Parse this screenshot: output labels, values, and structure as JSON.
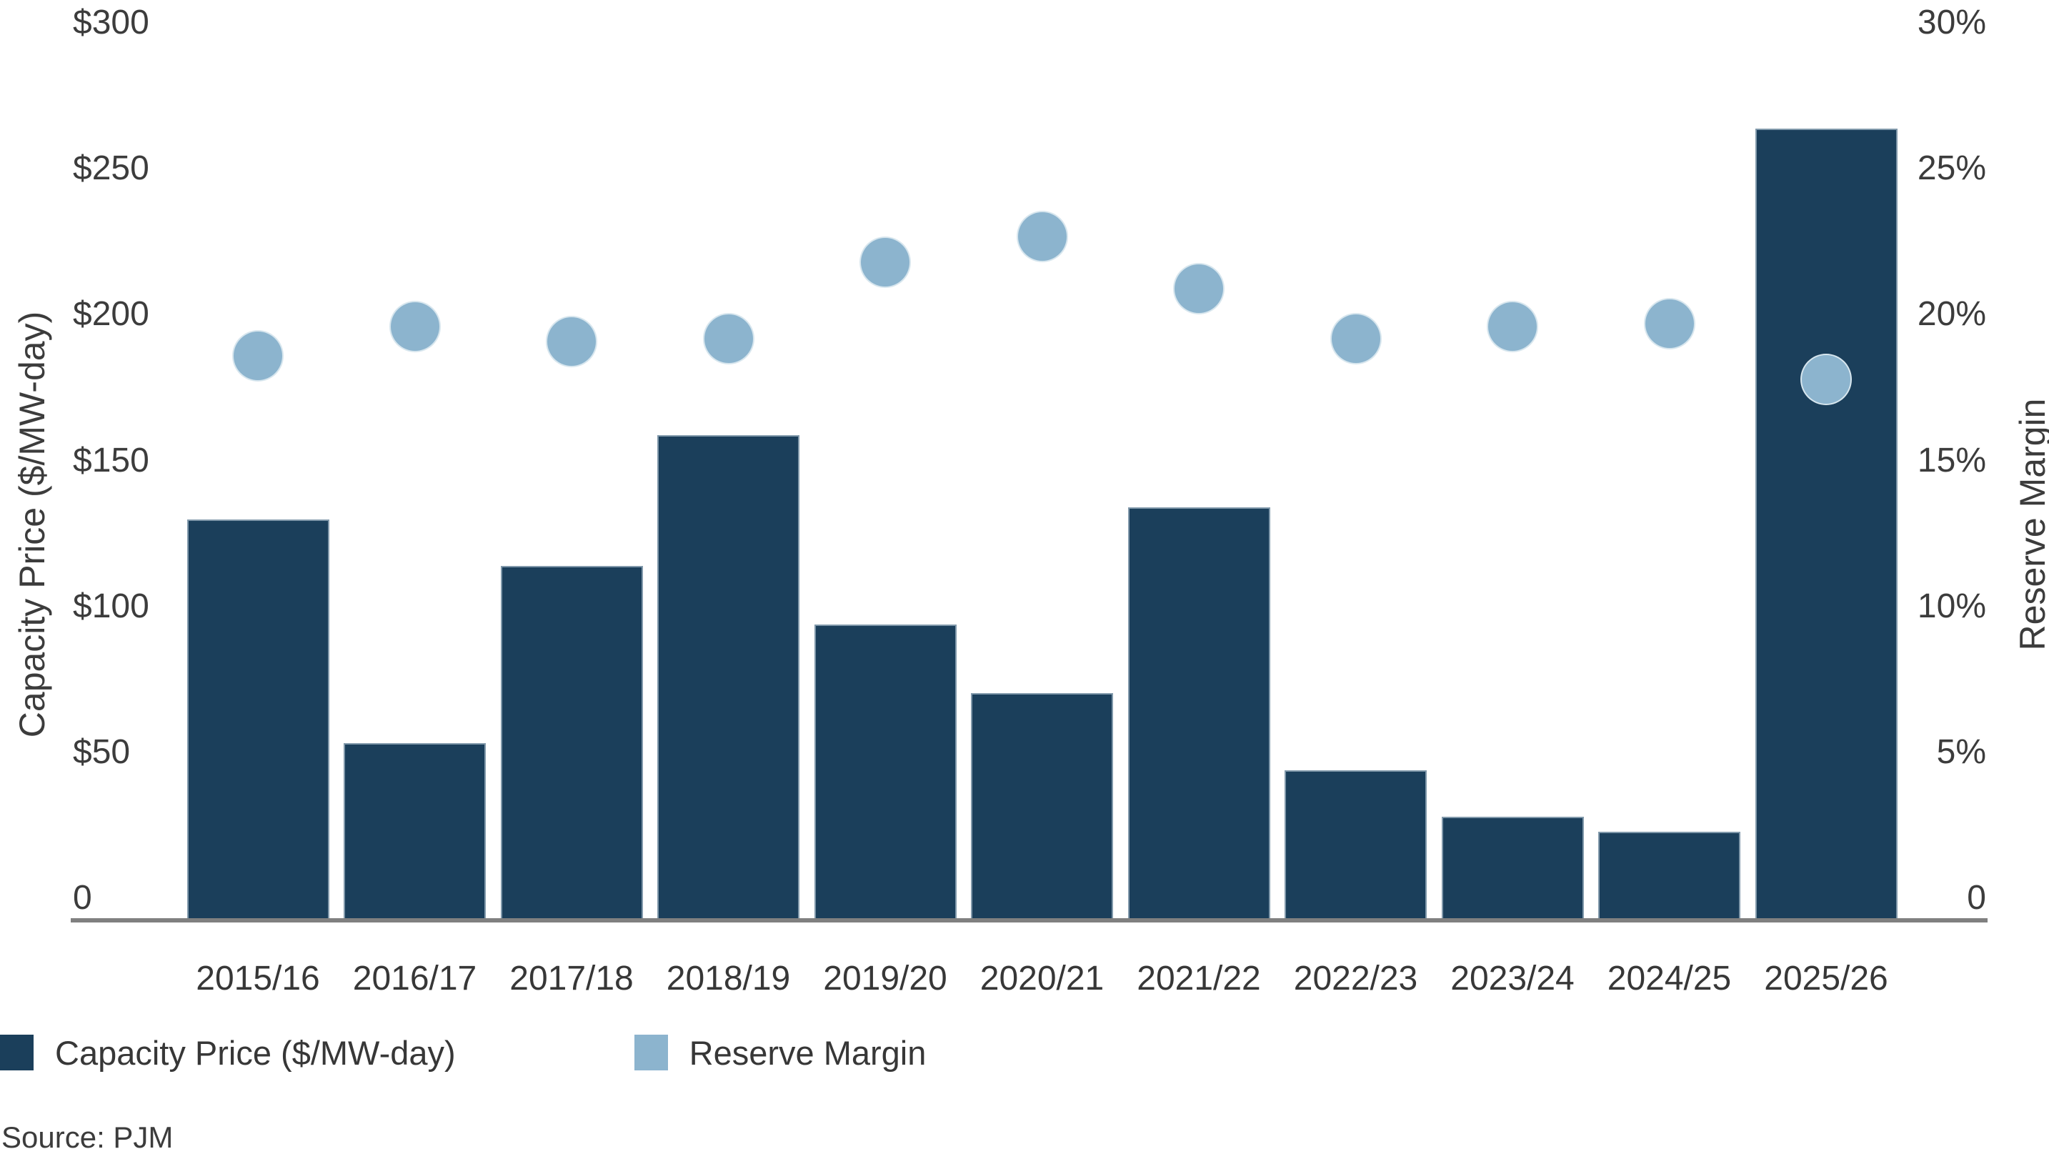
{
  "chart_data": {
    "type": "bar",
    "subtype": "dual-axis bar + scatter",
    "categories": [
      "2015/16",
      "2016/17",
      "2017/18",
      "2018/19",
      "2019/20",
      "2020/21",
      "2021/22",
      "2022/23",
      "2023/24",
      "2024/25",
      "2025/26"
    ],
    "series": [
      {
        "name": "Capacity Price ($/MW-day)",
        "type": "bar",
        "axis": "left",
        "values": [
          136.0,
          59.37,
          120.0,
          164.77,
          100.0,
          76.53,
          140.0,
          50.0,
          34.13,
          28.92,
          269.92
        ]
      },
      {
        "name": "Reserve Margin",
        "type": "scatter",
        "axis": "right",
        "values": [
          19.2,
          20.2,
          19.7,
          19.8,
          22.4,
          23.3,
          21.5,
          19.8,
          20.2,
          20.3,
          18.4
        ]
      }
    ],
    "left_axis": {
      "label": "Capacity Price ($/MW-day)",
      "ticks": [
        "$300",
        "$250",
        "$200",
        "$150",
        "$100",
        "$50",
        "0"
      ],
      "tick_values": [
        300,
        250,
        200,
        150,
        100,
        50,
        0
      ],
      "range": [
        0,
        300
      ]
    },
    "right_axis": {
      "label": "Reserve Margin",
      "ticks": [
        "30%",
        "25%",
        "20%",
        "15%",
        "10%",
        "5%",
        "0"
      ],
      "tick_values": [
        30,
        25,
        20,
        15,
        10,
        5,
        0
      ],
      "range": [
        0,
        30
      ]
    },
    "legend": [
      {
        "label": "Capacity Price ($/MW-day)",
        "color": "#1B3F5B",
        "marker": "square"
      },
      {
        "label": "Reserve Margin",
        "color": "#8CB4CE",
        "marker": "square"
      }
    ],
    "source": "Source: PJM",
    "grid": false,
    "legend_position": "bottom-left",
    "colors": {
      "bar": "#1B3F5B",
      "dot": "#8CB4CE",
      "axis_line": "#808080",
      "text": "#3C3C3C"
    }
  }
}
